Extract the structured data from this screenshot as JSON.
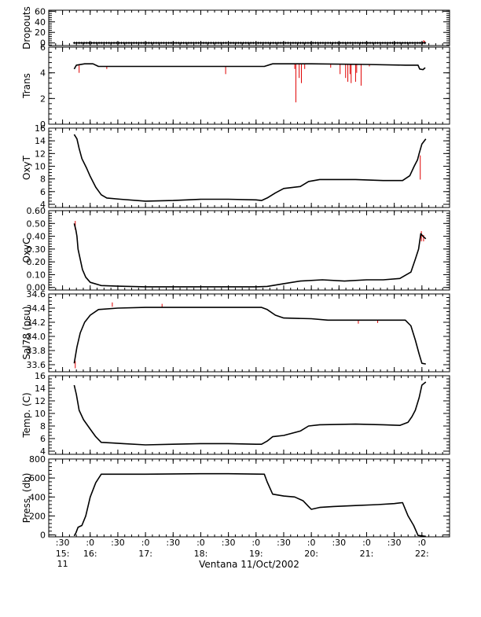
{
  "chart_data": {
    "type": "line",
    "xlabel": "Ventana 11/Oct/2002",
    "x_range_hours": [
      15.25,
      22.5
    ],
    "x_ticks": [
      {
        "t": 15.5,
        "top": ":30",
        "mid": "15:",
        "bot": "11"
      },
      {
        "t": 16.0,
        "top": ":0",
        "mid": "16:",
        "bot": ""
      },
      {
        "t": 16.5,
        "top": ":30",
        "mid": "",
        "bot": ""
      },
      {
        "t": 17.0,
        "top": ":0",
        "mid": "17:",
        "bot": ""
      },
      {
        "t": 17.5,
        "top": ":30",
        "mid": "",
        "bot": ""
      },
      {
        "t": 18.0,
        "top": ":0",
        "mid": "18:",
        "bot": ""
      },
      {
        "t": 18.5,
        "top": ":30",
        "mid": "",
        "bot": ""
      },
      {
        "t": 19.0,
        "top": ":0",
        "mid": "19:",
        "bot": ""
      },
      {
        "t": 19.5,
        "top": ":30",
        "mid": "",
        "bot": ""
      },
      {
        "t": 20.0,
        "top": ":0",
        "mid": "20:",
        "bot": ""
      },
      {
        "t": 20.5,
        "top": ":30",
        "mid": "",
        "bot": ""
      },
      {
        "t": 21.0,
        "top": ":0",
        "mid": "21:",
        "bot": ""
      },
      {
        "t": 21.5,
        "top": ":30",
        "mid": "",
        "bot": ""
      },
      {
        "t": 22.0,
        "top": ":0",
        "mid": "22:",
        "bot": ""
      }
    ],
    "colors": {
      "line": "#000000",
      "raw": "#e00000"
    },
    "panels": [
      {
        "ylabel": "Dropouts",
        "ylim": [
          -5,
          62
        ],
        "yticks": [
          0,
          20,
          40,
          60
        ],
        "yticklabels": [
          "0",
          "20",
          "40",
          "60"
        ],
        "minor": 5,
        "markers": true,
        "series": [
          [
            15.71,
            0
          ],
          [
            22.07,
            0
          ]
        ],
        "spikes": [
          [
            22.03,
            0,
            5
          ],
          [
            22.05,
            0,
            4
          ]
        ]
      },
      {
        "ylabel": "Trans",
        "ylim": [
          0,
          6
        ],
        "yticks": [
          0,
          2,
          4,
          6
        ],
        "yticklabels": [
          "0",
          "2",
          "4",
          "6"
        ],
        "minor": 5,
        "series": [
          [
            15.71,
            4.3
          ],
          [
            15.75,
            4.6
          ],
          [
            15.9,
            4.7
          ],
          [
            16.05,
            4.7
          ],
          [
            16.15,
            4.5
          ],
          [
            17.5,
            4.5
          ],
          [
            18.7,
            4.5
          ],
          [
            19.15,
            4.5
          ],
          [
            19.3,
            4.7
          ],
          [
            20.0,
            4.7
          ],
          [
            21.0,
            4.65
          ],
          [
            21.7,
            4.6
          ],
          [
            21.93,
            4.6
          ],
          [
            21.96,
            4.3
          ],
          [
            22.02,
            4.25
          ],
          [
            22.06,
            4.4
          ]
        ],
        "spikes": [
          [
            15.8,
            4.6,
            4.0
          ],
          [
            16.3,
            4.5,
            4.3
          ],
          [
            18.45,
            4.5,
            3.9
          ],
          [
            19.7,
            4.7,
            4.3
          ],
          [
            19.72,
            4.7,
            1.7
          ],
          [
            19.78,
            4.7,
            3.6
          ],
          [
            19.82,
            4.7,
            3.2
          ],
          [
            19.88,
            4.7,
            4.3
          ],
          [
            20.35,
            4.7,
            4.4
          ],
          [
            20.52,
            4.7,
            3.9
          ],
          [
            20.62,
            4.7,
            3.6
          ],
          [
            20.66,
            4.7,
            3.3
          ],
          [
            20.7,
            4.7,
            3.9
          ],
          [
            20.72,
            4.7,
            3.2
          ],
          [
            20.8,
            4.7,
            3.3
          ],
          [
            20.82,
            4.7,
            4.0
          ],
          [
            20.9,
            4.7,
            3.0
          ],
          [
            21.05,
            4.65,
            4.5
          ]
        ]
      },
      {
        "ylabel": "OxyT",
        "ylim": [
          3.5,
          16
        ],
        "yticks": [
          4,
          6,
          8,
          10,
          12,
          14,
          16
        ],
        "yticklabels": [
          "4",
          "6",
          "8",
          "10",
          "12",
          "14",
          "16"
        ],
        "minor": 4,
        "series": [
          [
            15.71,
            15.0
          ],
          [
            15.76,
            14.3
          ],
          [
            15.8,
            12.8
          ],
          [
            15.85,
            11.2
          ],
          [
            15.93,
            9.8
          ],
          [
            16.0,
            8.4
          ],
          [
            16.1,
            6.7
          ],
          [
            16.2,
            5.5
          ],
          [
            16.3,
            5.0
          ],
          [
            16.55,
            4.8
          ],
          [
            17.0,
            4.5
          ],
          [
            17.5,
            4.6
          ],
          [
            18.0,
            4.8
          ],
          [
            18.5,
            4.8
          ],
          [
            19.0,
            4.7
          ],
          [
            19.1,
            4.6
          ],
          [
            19.2,
            5.0
          ],
          [
            19.35,
            5.8
          ],
          [
            19.5,
            6.5
          ],
          [
            19.8,
            6.8
          ],
          [
            19.95,
            7.6
          ],
          [
            20.15,
            7.9
          ],
          [
            20.8,
            7.9
          ],
          [
            21.3,
            7.75
          ],
          [
            21.65,
            7.75
          ],
          [
            21.78,
            8.5
          ],
          [
            21.86,
            10.0
          ],
          [
            21.92,
            11.0
          ],
          [
            21.95,
            12.0
          ],
          [
            22.0,
            13.5
          ],
          [
            22.07,
            14.3
          ]
        ],
        "spikes": [
          [
            21.97,
            11.7,
            7.9
          ]
        ]
      },
      {
        "ylabel": "OxyC",
        "ylim": [
          -0.02,
          0.6
        ],
        "yticks": [
          0,
          0.1,
          0.2,
          0.3,
          0.4,
          0.5,
          0.6
        ],
        "yticklabels": [
          "0.00",
          "0.10",
          "0.20",
          "0.30",
          "0.40",
          "0.50",
          "0.60"
        ],
        "minor": 5,
        "series": [
          [
            15.71,
            0.5
          ],
          [
            15.74,
            0.45
          ],
          [
            15.76,
            0.4
          ],
          [
            15.78,
            0.3
          ],
          [
            15.82,
            0.22
          ],
          [
            15.86,
            0.14
          ],
          [
            15.92,
            0.08
          ],
          [
            16.0,
            0.04
          ],
          [
            16.2,
            0.015
          ],
          [
            16.5,
            0.01
          ],
          [
            17.0,
            0.005
          ],
          [
            18.0,
            0.005
          ],
          [
            19.0,
            0.005
          ],
          [
            19.2,
            0.008
          ],
          [
            19.5,
            0.03
          ],
          [
            19.8,
            0.05
          ],
          [
            20.2,
            0.06
          ],
          [
            20.6,
            0.05
          ],
          [
            21.0,
            0.06
          ],
          [
            21.3,
            0.06
          ],
          [
            21.6,
            0.07
          ],
          [
            21.8,
            0.12
          ],
          [
            21.88,
            0.22
          ],
          [
            21.94,
            0.3
          ],
          [
            21.98,
            0.42
          ],
          [
            22.02,
            0.4
          ],
          [
            22.07,
            0.38
          ]
        ],
        "spikes": [
          [
            15.73,
            0.45,
            0.52
          ],
          [
            21.99,
            0.44,
            0.36
          ],
          [
            22.03,
            0.41,
            0.36
          ]
        ]
      },
      {
        "ylabel": "Sal78 (psu)",
        "ylim": [
          33.5,
          34.6
        ],
        "yticks": [
          33.6,
          33.8,
          34.0,
          34.2,
          34.4,
          34.6
        ],
        "yticklabels": [
          "33.6",
          "33.8",
          "34.0",
          "34.2",
          "34.4",
          "34.6"
        ],
        "minor": 4,
        "series": [
          [
            15.71,
            33.62
          ],
          [
            15.76,
            33.85
          ],
          [
            15.82,
            34.05
          ],
          [
            15.9,
            34.2
          ],
          [
            16.0,
            34.3
          ],
          [
            16.15,
            34.38
          ],
          [
            16.5,
            34.4
          ],
          [
            17.0,
            34.41
          ],
          [
            18.0,
            34.41
          ],
          [
            19.1,
            34.41
          ],
          [
            19.2,
            34.38
          ],
          [
            19.35,
            34.3
          ],
          [
            19.5,
            34.26
          ],
          [
            20.0,
            34.25
          ],
          [
            20.3,
            34.23
          ],
          [
            21.0,
            34.23
          ],
          [
            21.7,
            34.23
          ],
          [
            21.8,
            34.15
          ],
          [
            21.88,
            33.95
          ],
          [
            21.95,
            33.75
          ],
          [
            22.0,
            33.62
          ],
          [
            22.07,
            33.61
          ]
        ],
        "spikes": [
          [
            15.73,
            33.65,
            33.55
          ],
          [
            16.4,
            34.42,
            34.48
          ],
          [
            17.3,
            34.41,
            34.46
          ],
          [
            20.85,
            34.23,
            34.18
          ],
          [
            21.2,
            34.23,
            34.19
          ]
        ]
      },
      {
        "ylabel": "Temp. (C)",
        "ylim": [
          3.5,
          16
        ],
        "yticks": [
          4,
          6,
          8,
          10,
          12,
          14,
          16
        ],
        "yticklabels": [
          "4",
          "6",
          "8",
          "10",
          "12",
          "14",
          "16"
        ],
        "minor": 4,
        "series": [
          [
            15.71,
            14.5
          ],
          [
            15.75,
            13.0
          ],
          [
            15.8,
            10.5
          ],
          [
            15.88,
            9.0
          ],
          [
            16.0,
            7.5
          ],
          [
            16.1,
            6.3
          ],
          [
            16.2,
            5.4
          ],
          [
            16.4,
            5.3
          ],
          [
            16.6,
            5.2
          ],
          [
            17.0,
            5.0
          ],
          [
            17.5,
            5.1
          ],
          [
            18.0,
            5.2
          ],
          [
            18.5,
            5.2
          ],
          [
            19.0,
            5.1
          ],
          [
            19.1,
            5.1
          ],
          [
            19.2,
            5.6
          ],
          [
            19.3,
            6.3
          ],
          [
            19.5,
            6.5
          ],
          [
            19.8,
            7.2
          ],
          [
            19.95,
            8.0
          ],
          [
            20.15,
            8.2
          ],
          [
            20.8,
            8.3
          ],
          [
            21.3,
            8.2
          ],
          [
            21.6,
            8.1
          ],
          [
            21.75,
            8.6
          ],
          [
            21.82,
            9.5
          ],
          [
            21.88,
            10.5
          ],
          [
            21.95,
            12.5
          ],
          [
            22.0,
            14.5
          ],
          [
            22.07,
            15.0
          ]
        ],
        "spikes": []
      },
      {
        "ylabel": "Press. (db)",
        "ylim": [
          -20,
          800
        ],
        "yticks": [
          0,
          200,
          400,
          600,
          800
        ],
        "yticklabels": [
          "0",
          "200",
          "400",
          "600",
          "800"
        ],
        "minor": 5,
        "series": [
          [
            15.71,
            -10
          ],
          [
            15.74,
            20
          ],
          [
            15.78,
            80
          ],
          [
            15.85,
            100
          ],
          [
            15.92,
            200
          ],
          [
            16.0,
            400
          ],
          [
            16.1,
            550
          ],
          [
            16.2,
            640
          ],
          [
            16.5,
            640
          ],
          [
            17.0,
            640
          ],
          [
            18.0,
            645
          ],
          [
            18.5,
            645
          ],
          [
            19.15,
            640
          ],
          [
            19.2,
            560
          ],
          [
            19.3,
            430
          ],
          [
            19.5,
            410
          ],
          [
            19.7,
            400
          ],
          [
            19.85,
            360
          ],
          [
            19.95,
            300
          ],
          [
            20.0,
            270
          ],
          [
            20.15,
            290
          ],
          [
            20.4,
            300
          ],
          [
            20.8,
            310
          ],
          [
            21.2,
            320
          ],
          [
            21.5,
            330
          ],
          [
            21.65,
            340
          ],
          [
            21.75,
            200
          ],
          [
            21.85,
            100
          ],
          [
            21.93,
            -5
          ],
          [
            22.07,
            -15
          ]
        ],
        "spikes": []
      }
    ]
  }
}
